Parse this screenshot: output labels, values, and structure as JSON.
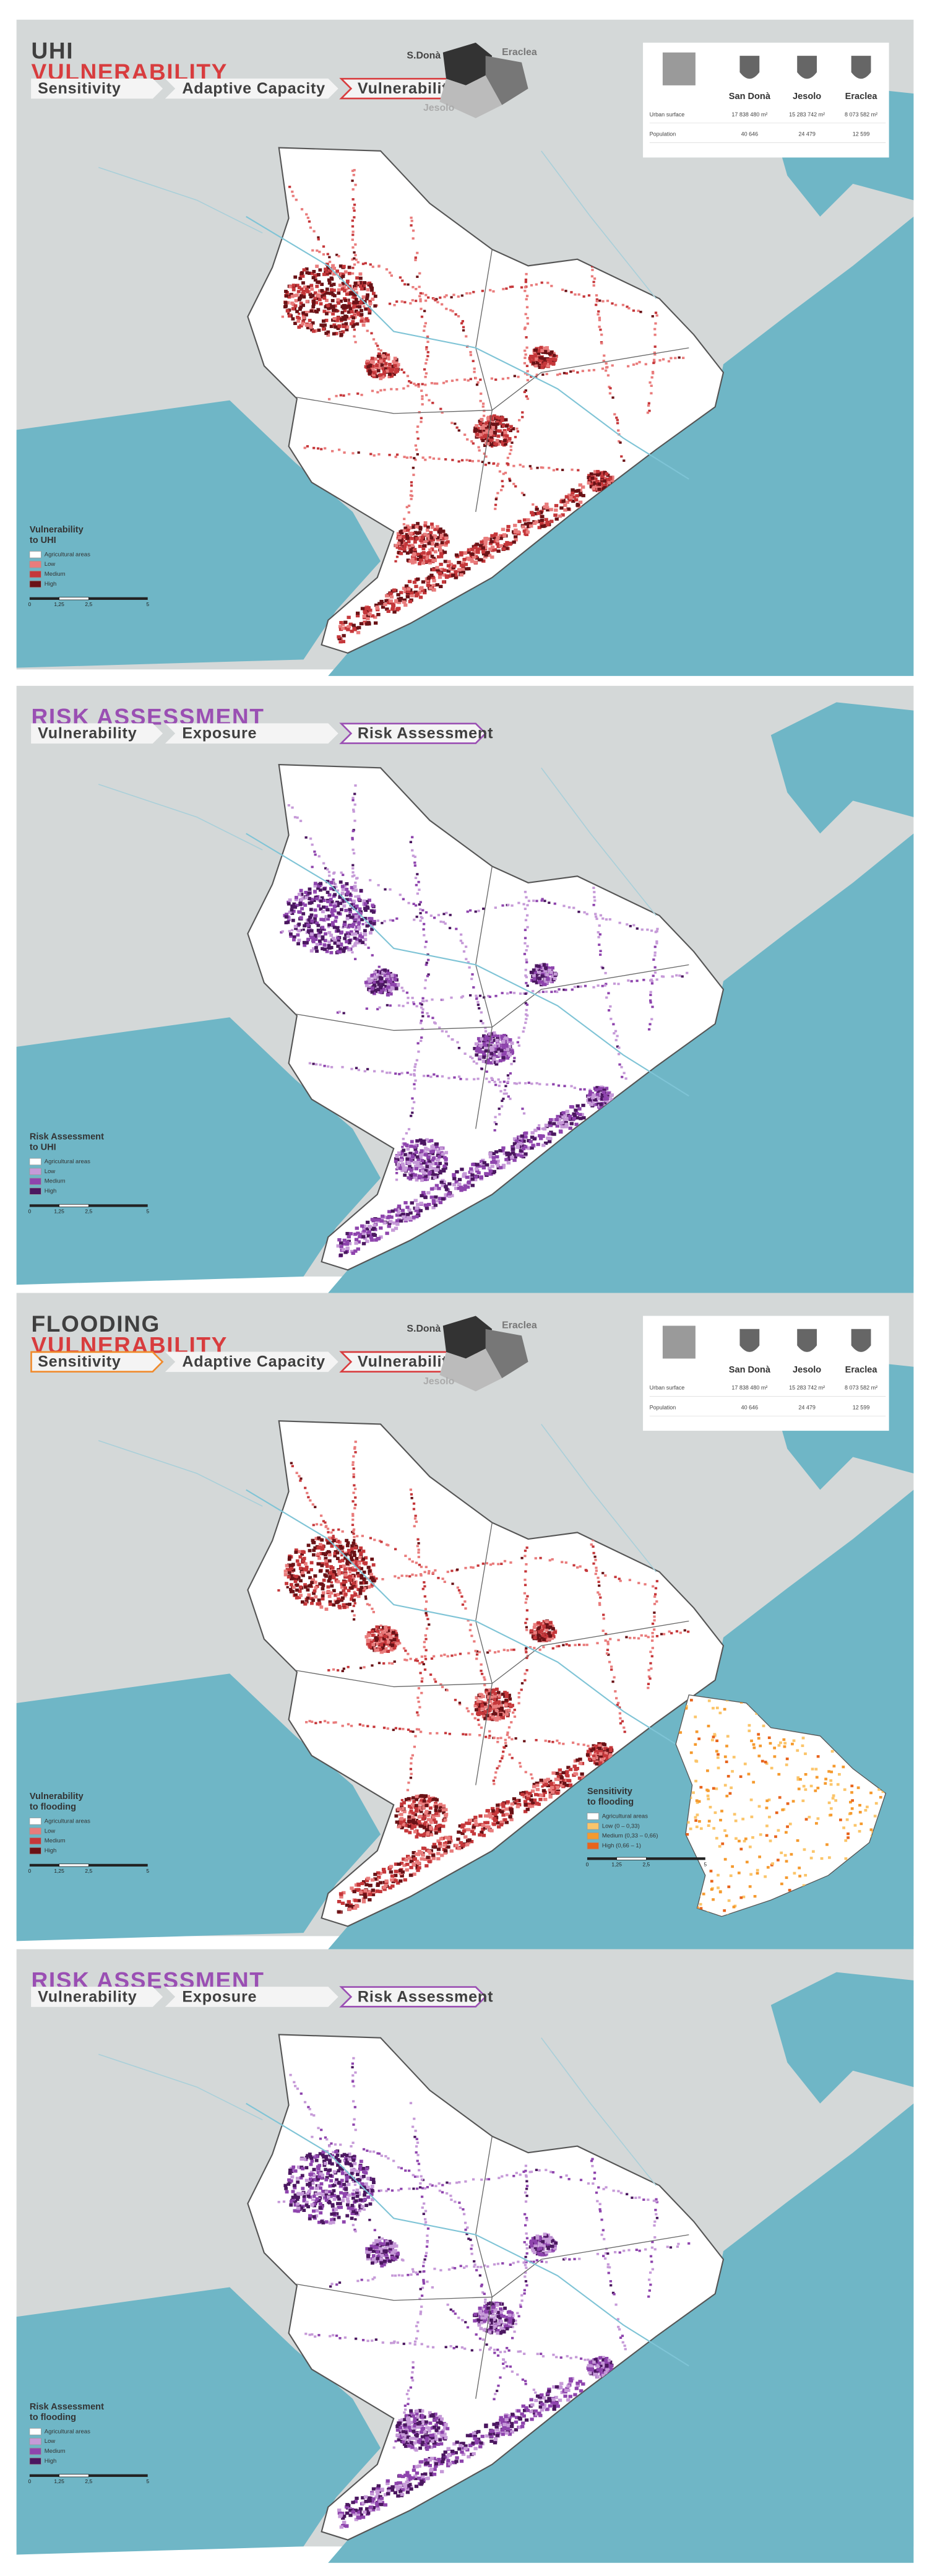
{
  "info": {
    "locator": [
      "S.Donà",
      "Eraclea",
      "Jesolo"
    ],
    "columns": [
      "San Donà",
      "Jesolo",
      "Eraclea"
    ],
    "rows": [
      {
        "label": "Urban surface",
        "values": [
          "17 838 480 m²",
          "15 283 742 m²",
          "8 073 582 m²"
        ]
      },
      {
        "label": "Population",
        "values": [
          "40 646",
          "24 479",
          "12 599"
        ]
      }
    ]
  },
  "scale_bar": [
    "0",
    "1,25",
    "2,5",
    "5"
  ],
  "panels": [
    {
      "title": [
        "UHI",
        "VULNERABILITY"
      ],
      "accent": "#d83c3e",
      "steps": [
        {
          "label": "Sensitivity"
        },
        {
          "label": "Adaptive Capacity"
        },
        {
          "label": "Vulnerability",
          "color": "#d83c3e"
        }
      ],
      "legend": {
        "title": [
          "Vulnerability",
          "to UHI"
        ],
        "items": [
          {
            "label": "Agricultural areas",
            "color": "#ffffff"
          },
          {
            "label": "Low",
            "color": "#e97c7c"
          },
          {
            "label": "Medium",
            "color": "#c5373a"
          },
          {
            "label": "High",
            "color": "#6a1216"
          }
        ]
      }
    },
    {
      "title": [
        "RISK ASSESSMENT"
      ],
      "accent": "#9a4fb3",
      "steps": [
        {
          "label": "Vulnerability"
        },
        {
          "label": "Exposure"
        },
        {
          "label": "Risk Assessment",
          "color": "#9a4fb3"
        }
      ],
      "legend": {
        "title": [
          "Risk Assessment",
          "to UHI"
        ],
        "items": [
          {
            "label": "Agricultural areas",
            "color": "#ffffff"
          },
          {
            "label": "Low",
            "color": "#c69ad8"
          },
          {
            "label": "Medium",
            "color": "#8e44ad"
          },
          {
            "label": "High",
            "color": "#4b1760"
          }
        ]
      }
    },
    {
      "title": [
        "FLOODING",
        "VULNERABILITY"
      ],
      "accent": "#d83c3e",
      "steps": [
        {
          "label": "Sensitivity",
          "color": "#f08a2c"
        },
        {
          "label": "Adaptive Capacity"
        },
        {
          "label": "Vulnerability",
          "color": "#d83c3e"
        }
      ],
      "legend": {
        "title": [
          "Vulnerability",
          "to flooding"
        ],
        "items": [
          {
            "label": "Agricultural areas",
            "color": "#ffffff"
          },
          {
            "label": "Low",
            "color": "#e97c7c"
          },
          {
            "label": "Medium",
            "color": "#c5373a"
          },
          {
            "label": "High",
            "color": "#6a1216"
          }
        ]
      },
      "inset": {
        "title": [
          "Sensitivity",
          "to flooding"
        ],
        "items": [
          {
            "label": "Agricultural areas",
            "color": "#ffffff"
          },
          {
            "label": "Low (0 – 0,33)",
            "color": "#fbc56a"
          },
          {
            "label": "Medium (0,33 – 0,66)",
            "color": "#f59a2e"
          },
          {
            "label": "High (0,66 – 1)",
            "color": "#e8641c"
          }
        ]
      }
    },
    {
      "title": [
        "RISK ASSESSMENT"
      ],
      "accent": "#9a4fb3",
      "steps": [
        {
          "label": "Vulnerability"
        },
        {
          "label": "Exposure"
        },
        {
          "label": "Risk Assessment",
          "color": "#9a4fb3"
        }
      ],
      "legend": {
        "title": [
          "Risk Assessment",
          "to flooding"
        ],
        "items": [
          {
            "label": "Agricultural areas",
            "color": "#ffffff"
          },
          {
            "label": "Low",
            "color": "#c69ad8"
          },
          {
            "label": "Medium",
            "color": "#8e44ad"
          },
          {
            "label": "High",
            "color": "#4b1760"
          }
        ]
      }
    }
  ]
}
